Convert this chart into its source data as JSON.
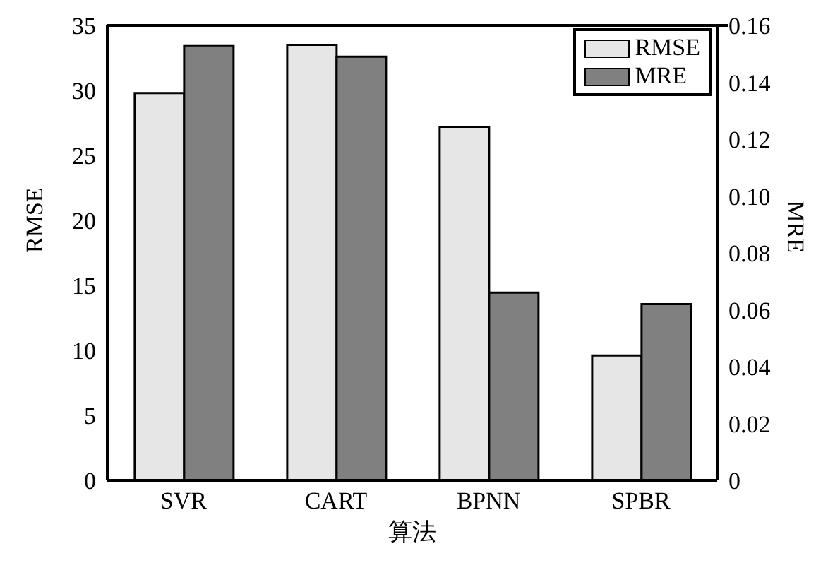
{
  "chart_data": {
    "type": "bar",
    "xlabel": "算法",
    "ylabel": "RMSE",
    "y2label": "MRE",
    "categories": [
      "SVR",
      "CART",
      "BPNN",
      "SPBR"
    ],
    "series": [
      {
        "name": "RMSE",
        "color": "#e6e6e6",
        "values": [
          29.8,
          33.5,
          27.2,
          9.6
        ]
      },
      {
        "name": "MRE",
        "color": "#808080",
        "values": [
          0.153,
          0.149,
          0.066,
          0.062
        ],
        "axis": "y2"
      }
    ],
    "ylim": [
      0,
      35
    ],
    "yticks": [
      0,
      5,
      10,
      15,
      20,
      25,
      30,
      35
    ],
    "y2lim": [
      0,
      0.16
    ],
    "y2ticks": [
      {
        "value": 0,
        "label": "0"
      },
      {
        "value": 0.02,
        "label": "0.02"
      },
      {
        "value": 0.04,
        "label": "0.04"
      },
      {
        "value": 0.06,
        "label": "0.06"
      },
      {
        "value": 0.08,
        "label": "0.08"
      },
      {
        "value": 0.1,
        "label": "0.10"
      },
      {
        "value": 0.12,
        "label": "0.12"
      },
      {
        "value": 0.14,
        "label": "0.14"
      },
      {
        "value": 0.16,
        "label": "0.16"
      }
    ],
    "grid": false,
    "legend": "top right"
  }
}
